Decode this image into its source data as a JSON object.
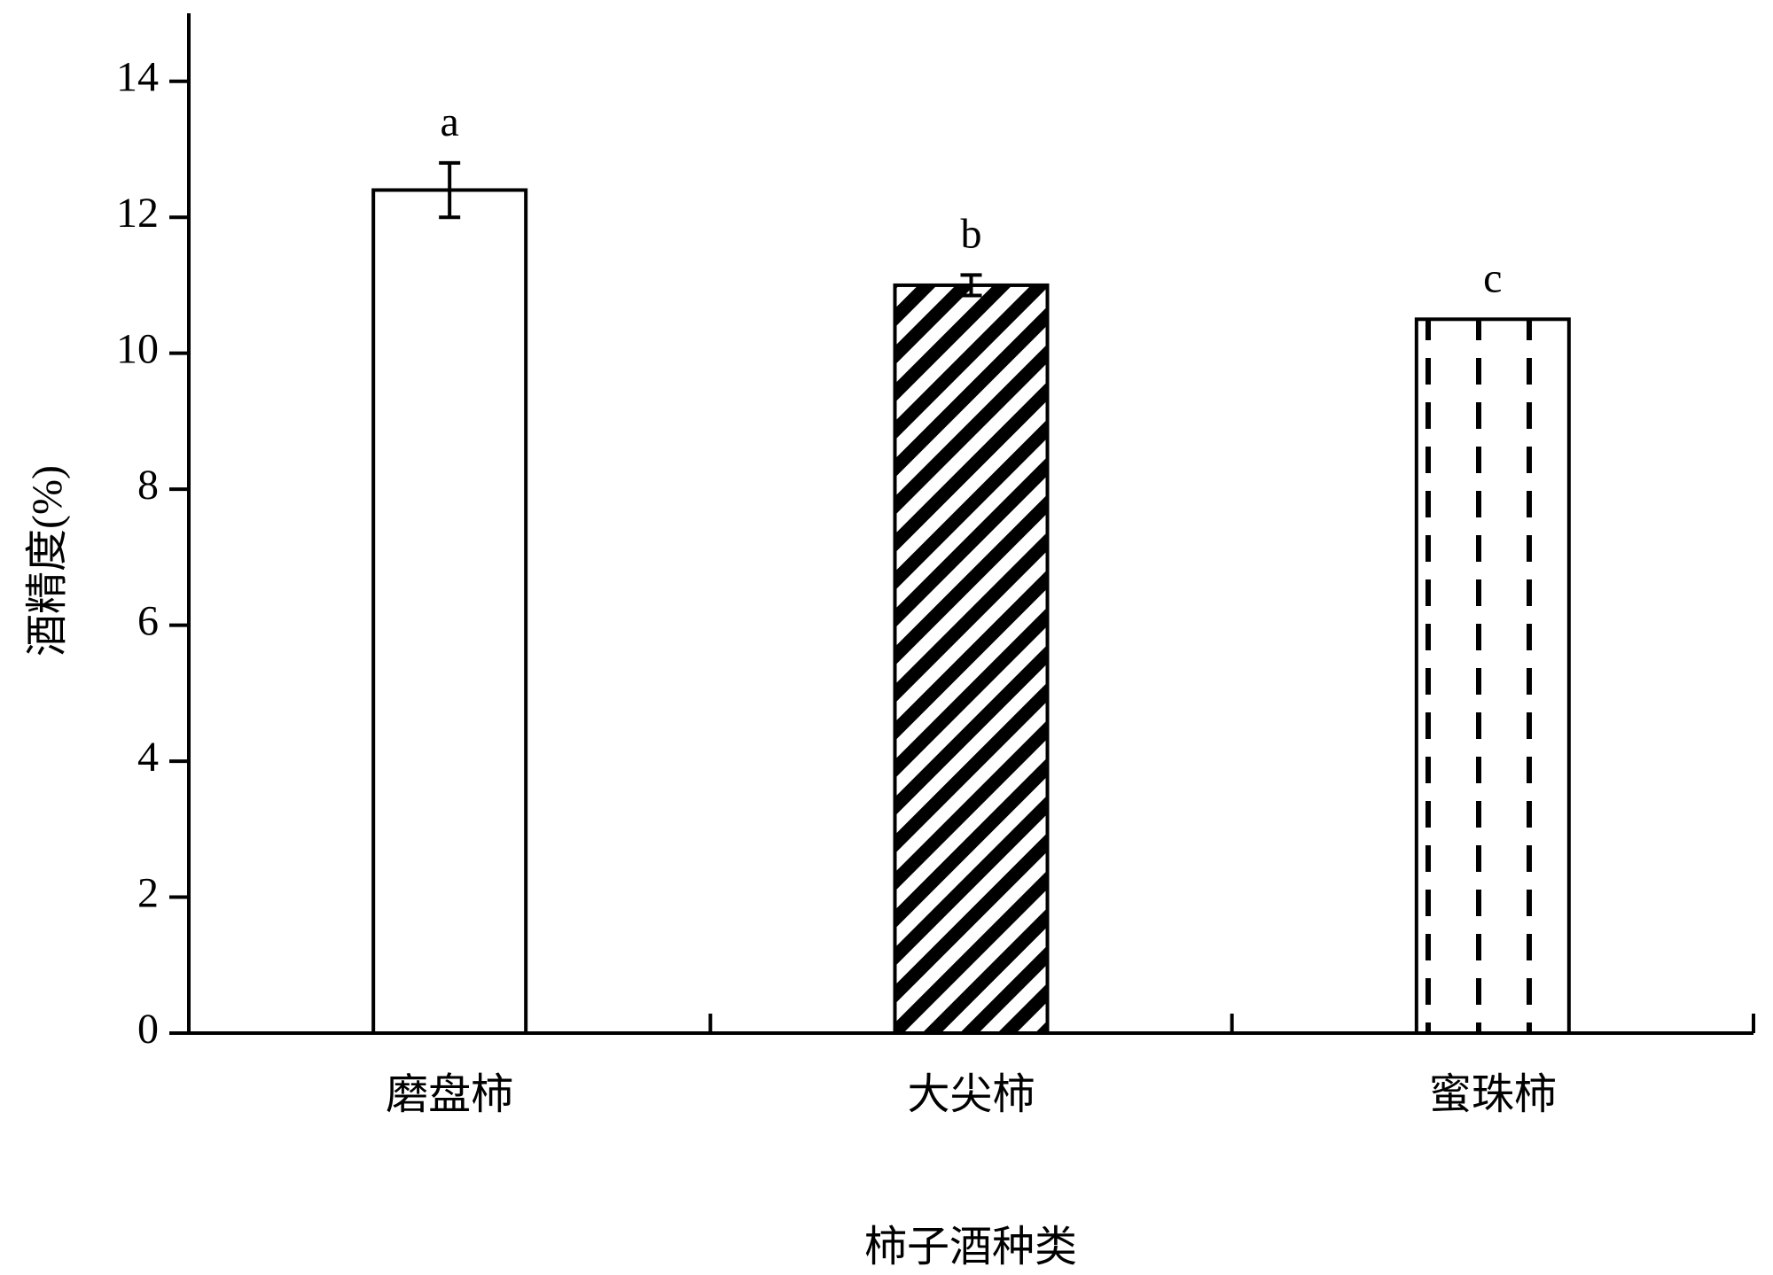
{
  "chart_data": {
    "type": "bar",
    "y_label": "酒精度(%)",
    "x_label": "柿子酒种类",
    "categories": [
      "磨盘柿",
      "大尖柿",
      "蜜珠柿"
    ],
    "values": [
      12.4,
      11.0,
      10.5
    ],
    "errors": [
      0.4,
      0.15,
      null
    ],
    "letters": [
      "a",
      "b",
      "c"
    ],
    "color": "#000000",
    "ylim": [
      0,
      15
    ],
    "yticks": [
      0,
      2,
      4,
      6,
      8,
      10,
      12,
      14
    ],
    "grid": false
  }
}
